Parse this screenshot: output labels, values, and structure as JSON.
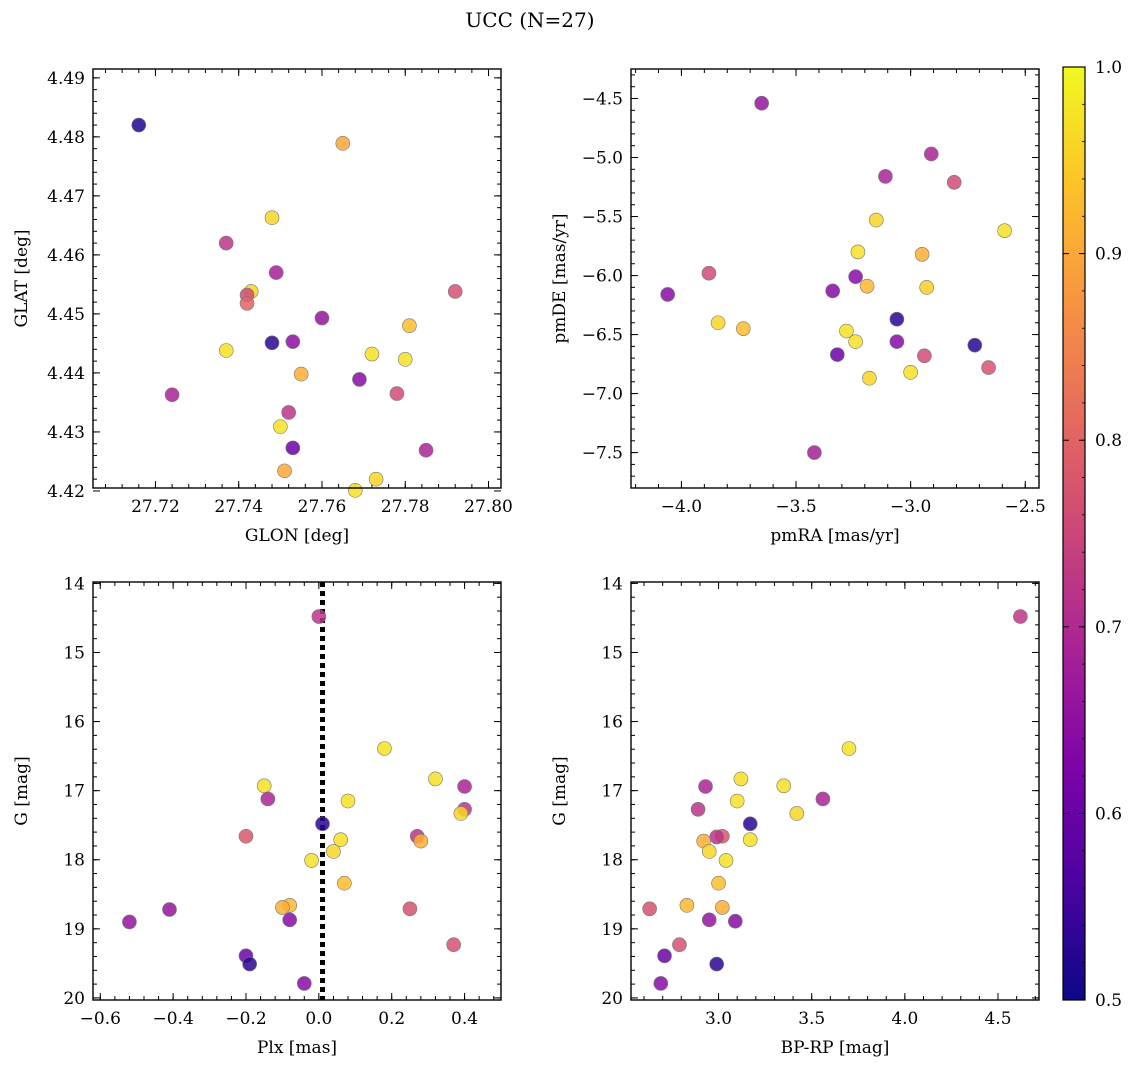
{
  "figure": {
    "title": "UCC (N=27)"
  },
  "colorbar": {
    "colormap": "plasma",
    "range": [
      0.5,
      1.0
    ],
    "ticks": [
      "0.5",
      "0.6",
      "0.7",
      "0.8",
      "0.9",
      "1.0"
    ]
  },
  "chart_data": [
    {
      "type": "scatter",
      "id": "sky",
      "xlabel": "GLON [deg]",
      "ylabel": "GLAT [deg]",
      "xlim": [
        27.705,
        27.803
      ],
      "ylim": [
        4.4205,
        4.4915
      ],
      "xticks": [
        "27.72",
        "27.74",
        "27.76",
        "27.78",
        "27.80"
      ],
      "yticks": [
        "4.42",
        "4.43",
        "4.44",
        "4.45",
        "4.46",
        "4.47",
        "4.48",
        "4.49"
      ],
      "x": [
        27.716,
        27.765,
        27.737,
        27.748,
        27.749,
        27.743,
        27.742,
        27.742,
        27.792,
        27.76,
        27.781,
        27.737,
        27.748,
        27.753,
        27.772,
        27.78,
        27.755,
        27.724,
        27.769,
        27.778,
        27.752,
        27.75,
        27.753,
        27.751,
        27.785,
        27.773,
        27.768
      ],
      "y": [
        4.482,
        4.4789,
        4.462,
        4.4663,
        4.457,
        4.4538,
        4.4532,
        4.4518,
        4.4538,
        4.4493,
        4.448,
        4.4438,
        4.4451,
        4.4453,
        4.4432,
        4.4423,
        4.4398,
        4.4363,
        4.4389,
        4.4365,
        4.4333,
        4.4309,
        4.4273,
        4.4234,
        4.4269,
        4.422,
        4.4201
      ],
      "probability": [
        0.52,
        0.9,
        0.72,
        0.96,
        0.68,
        0.96,
        0.76,
        0.8,
        0.77,
        0.66,
        0.93,
        0.97,
        0.53,
        0.65,
        0.97,
        0.97,
        0.91,
        0.69,
        0.64,
        0.76,
        0.72,
        0.97,
        0.6,
        0.9,
        0.69,
        0.96,
        0.97
      ]
    },
    {
      "type": "scatter",
      "id": "pm",
      "xlabel": "pmRA [mas/yr]",
      "ylabel": "pmDE [mas/yr]",
      "xlim": [
        -4.22,
        -2.44
      ],
      "ylim": [
        -7.8,
        -4.25
      ],
      "xticks": [
        "−4.0",
        "−3.5",
        "−3.0",
        "−2.5"
      ],
      "yticks": [
        "−7.5",
        "−7.0",
        "−6.5",
        "−6.0",
        "−5.5",
        "−5.0",
        "−4.5"
      ],
      "x": [
        -3.65,
        -2.91,
        -3.11,
        -2.81,
        -3.15,
        -2.59,
        -3.23,
        -2.95,
        -3.88,
        -3.24,
        -3.19,
        -2.93,
        -4.06,
        -3.34,
        -3.84,
        -3.73,
        -3.28,
        -3.06,
        -3.24,
        -2.72,
        -3.32,
        -2.94,
        -2.66,
        -3.0,
        -3.18,
        -3.42,
        -3.06
      ],
      "y": [
        -4.54,
        -4.97,
        -5.16,
        -5.21,
        -5.53,
        -5.62,
        -5.8,
        -5.82,
        -5.98,
        -6.01,
        -6.09,
        -6.1,
        -6.16,
        -6.13,
        -6.4,
        -6.45,
        -6.47,
        -6.56,
        -6.56,
        -6.59,
        -6.67,
        -6.68,
        -6.78,
        -6.82,
        -6.87,
        -7.5,
        -6.37
      ],
      "probability": [
        0.66,
        0.69,
        0.69,
        0.76,
        0.96,
        0.97,
        0.97,
        0.91,
        0.76,
        0.64,
        0.92,
        0.95,
        0.64,
        0.64,
        0.96,
        0.93,
        0.97,
        0.64,
        0.97,
        0.53,
        0.6,
        0.76,
        0.77,
        0.97,
        0.96,
        0.68,
        0.53
      ]
    },
    {
      "type": "scatter",
      "id": "plx",
      "xlabel": "Plx [mas]",
      "ylabel": "G [mag]",
      "xlim": [
        -0.62,
        0.5
      ],
      "ylim": [
        20.03,
        13.98
      ],
      "vline": 0.01,
      "xticks": [
        "−0.6",
        "−0.4",
        "−0.2",
        "0.0",
        "0.2",
        "0.4"
      ],
      "yticks": [
        "14",
        "15",
        "16",
        "17",
        "18",
        "19",
        "20"
      ],
      "x": [
        0.0,
        0.18,
        0.32,
        0.4,
        -0.15,
        0.08,
        -0.14,
        0.4,
        0.39,
        0.01,
        -0.2,
        0.27,
        0.28,
        0.06,
        0.04,
        -0.02,
        0.07,
        -0.08,
        -0.1,
        0.25,
        -0.41,
        -0.52,
        -0.08,
        0.37,
        -0.2,
        -0.19,
        -0.04
      ],
      "y": [
        14.48,
        16.39,
        16.83,
        16.94,
        16.93,
        17.15,
        17.12,
        17.27,
        17.33,
        17.48,
        17.66,
        17.66,
        17.73,
        17.71,
        17.88,
        18.01,
        18.34,
        18.66,
        18.69,
        18.71,
        18.72,
        18.9,
        18.87,
        19.23,
        19.39,
        19.51,
        19.79
      ],
      "probability": [
        0.72,
        0.97,
        0.97,
        0.69,
        0.97,
        0.97,
        0.69,
        0.72,
        0.96,
        0.53,
        0.78,
        0.72,
        0.91,
        0.97,
        0.96,
        0.97,
        0.93,
        0.92,
        0.91,
        0.77,
        0.66,
        0.66,
        0.64,
        0.77,
        0.6,
        0.53,
        0.64
      ]
    },
    {
      "type": "scatter",
      "id": "cmd",
      "xlabel": "BP-RP [mag]",
      "ylabel": "G [mag]",
      "xlim": [
        2.53,
        4.72
      ],
      "ylim": [
        20.03,
        13.98
      ],
      "xticks": [
        "3.0",
        "3.5",
        "4.0",
        "4.5"
      ],
      "yticks": [
        "14",
        "15",
        "16",
        "17",
        "18",
        "19",
        "20"
      ],
      "x": [
        4.62,
        3.7,
        3.12,
        2.93,
        3.35,
        3.1,
        3.56,
        2.89,
        3.42,
        3.17,
        3.02,
        2.99,
        2.92,
        3.17,
        2.95,
        3.04,
        3.0,
        2.83,
        3.02,
        2.63,
        2.95,
        3.09,
        2.79,
        2.71,
        2.99,
        2.69
      ],
      "y": [
        14.48,
        16.39,
        16.83,
        16.94,
        16.93,
        17.15,
        17.12,
        17.27,
        17.33,
        17.48,
        17.66,
        17.67,
        17.73,
        17.71,
        17.88,
        18.01,
        18.34,
        18.66,
        18.69,
        18.71,
        18.87,
        18.89,
        19.23,
        19.39,
        19.51,
        19.79
      ],
      "probability": [
        0.72,
        0.97,
        0.97,
        0.69,
        0.97,
        0.97,
        0.69,
        0.72,
        0.96,
        0.53,
        0.78,
        0.72,
        0.91,
        0.97,
        0.96,
        0.97,
        0.93,
        0.92,
        0.91,
        0.77,
        0.66,
        0.64,
        0.77,
        0.6,
        0.53,
        0.64
      ]
    }
  ]
}
